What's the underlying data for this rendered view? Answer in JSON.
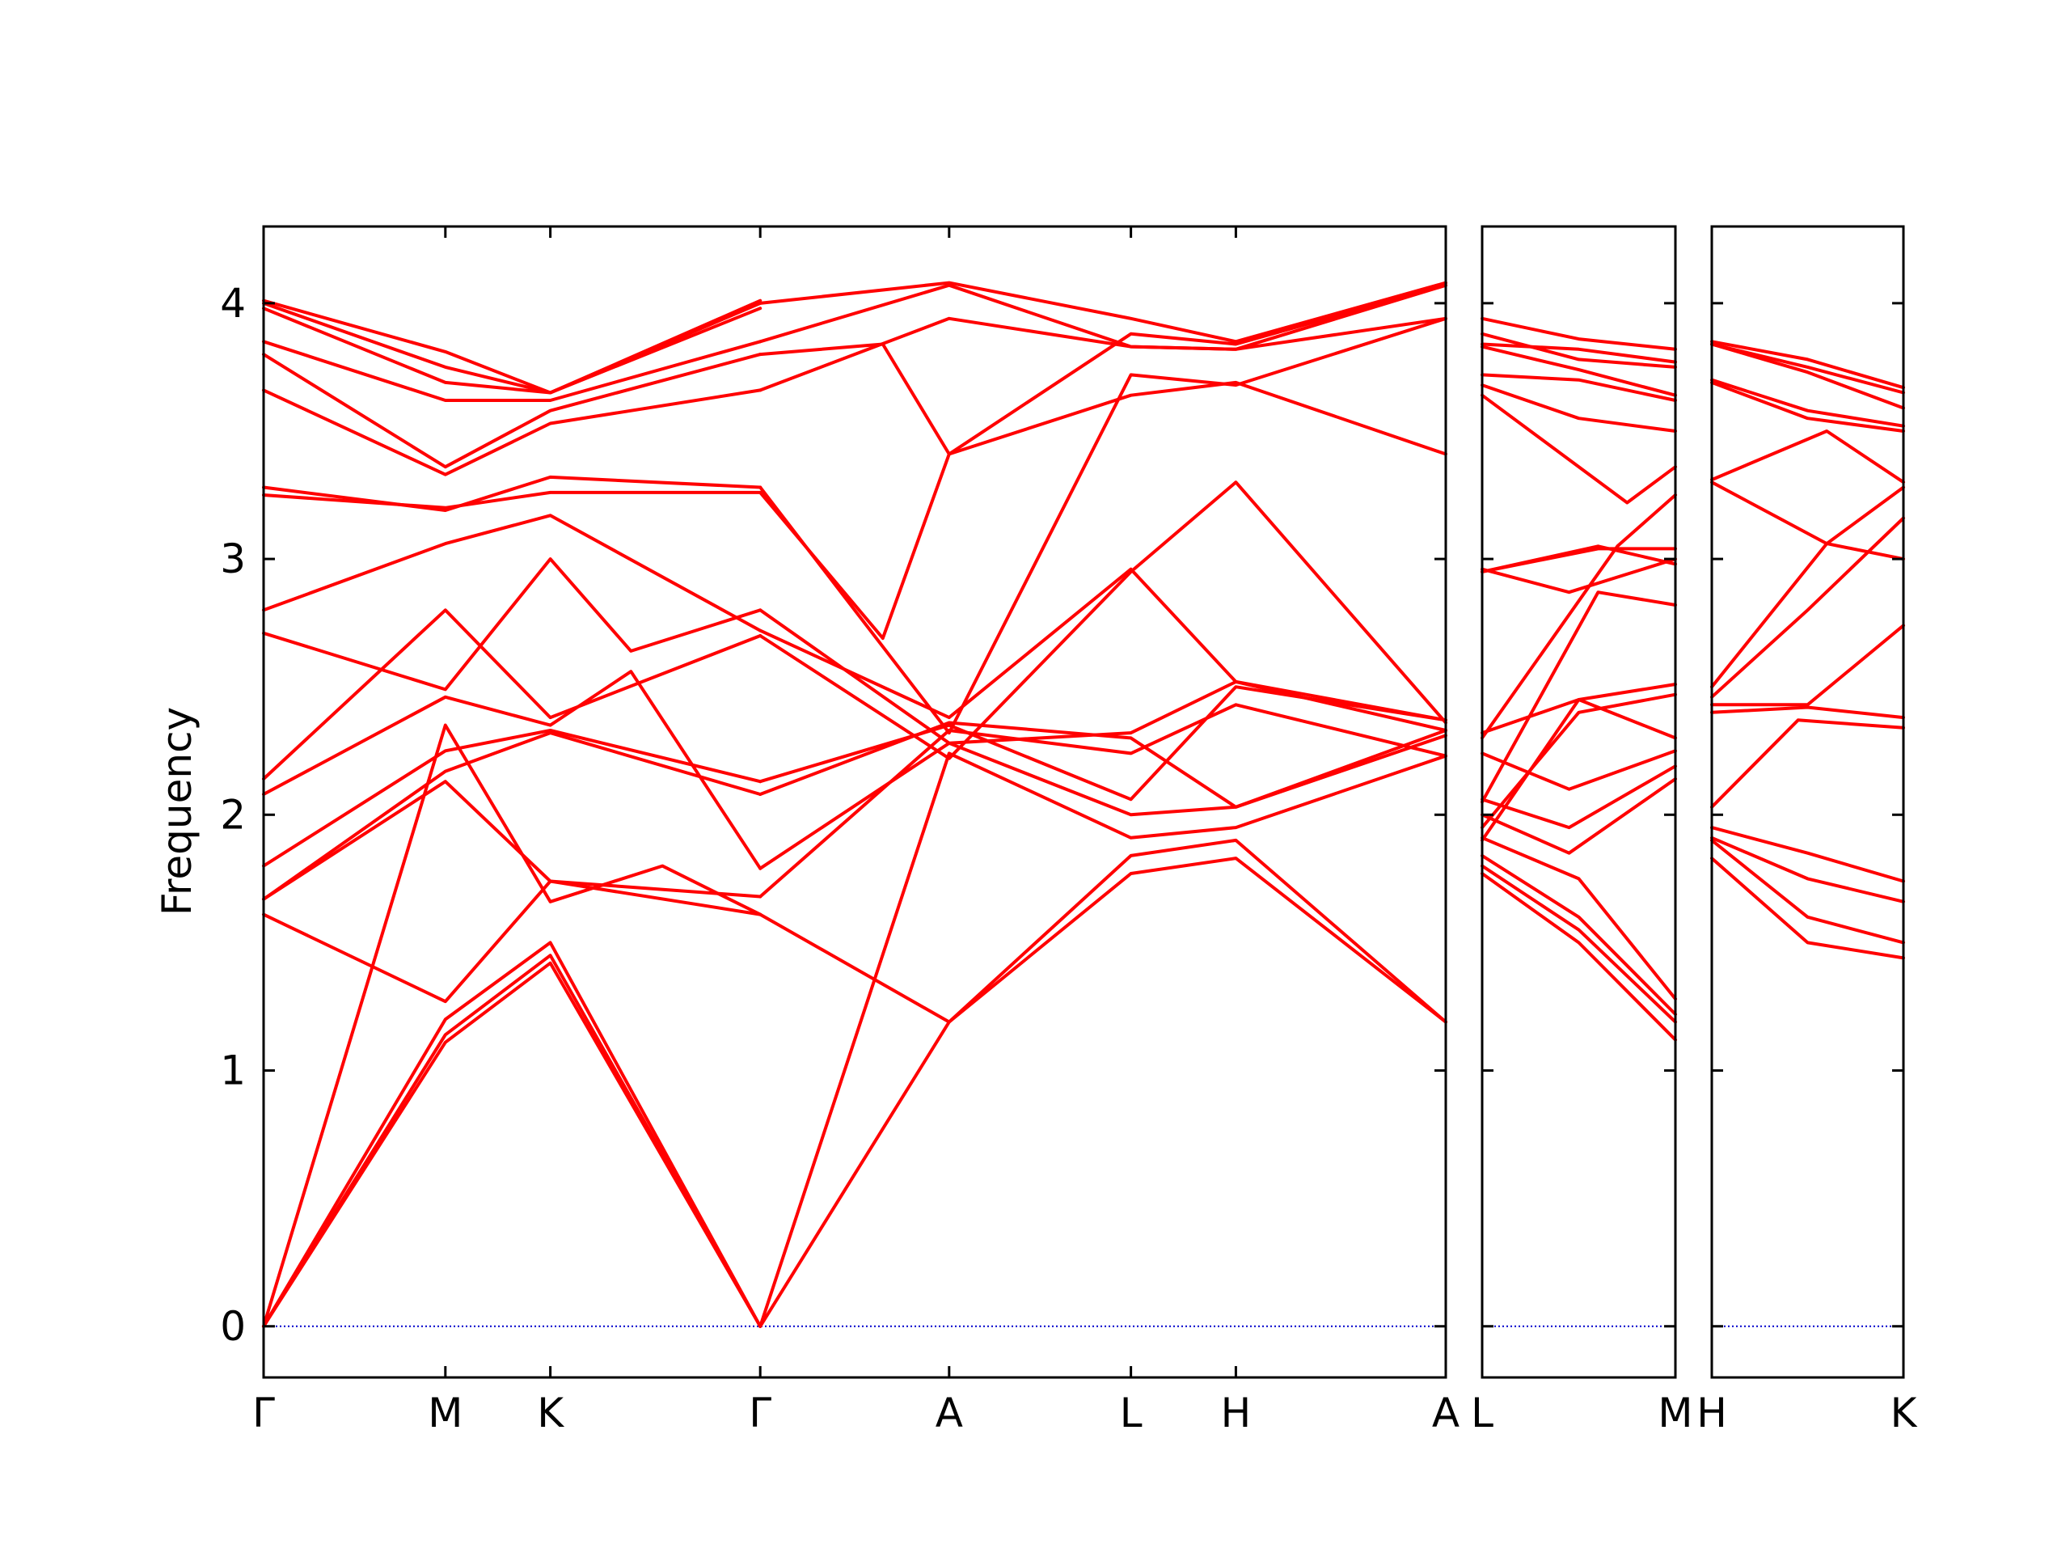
{
  "chart_data": {
    "type": "line",
    "ylabel": "Frequency",
    "ylim": [
      -0.2,
      4.3
    ],
    "yticks": [
      0,
      1,
      2,
      3,
      4
    ],
    "line_color": "#ff0000",
    "zero_line_color": "#0000cc",
    "panels": [
      {
        "labels": [
          "Γ",
          "M",
          "K",
          "Γ",
          "A",
          "L",
          "H",
          "A"
        ],
        "tick_positions": [
          0,
          0.866,
          1.366,
          2.366,
          3.266,
          4.132,
          4.632,
          5.632
        ],
        "xlim": [
          0,
          5.632
        ],
        "bands": [
          {
            "x": [
              0,
              0.866,
              1.366,
              2.366
            ],
            "y": [
              0,
              1.11,
              1.42,
              0
            ]
          },
          {
            "x": [
              0,
              0.866,
              1.366,
              2.366
            ],
            "y": [
              0,
              1.14,
              1.45,
              0
            ]
          },
          {
            "x": [
              0,
              0.866,
              1.366,
              2.366
            ],
            "y": [
              0,
              1.2,
              1.5,
              0
            ]
          },
          {
            "x": [
              0,
              0.866,
              1.366,
              1.9,
              2.366
            ],
            "y": [
              0,
              2.35,
              1.66,
              1.8,
              1.61
            ]
          },
          {
            "x": [
              0,
              0.866,
              1.366,
              2.366
            ],
            "y": [
              1.61,
              1.27,
              1.74,
              1.61
            ]
          },
          {
            "x": [
              0,
              0.866,
              1.366,
              2.366
            ],
            "y": [
              1.67,
              2.13,
              1.74,
              1.68
            ]
          },
          {
            "x": [
              0,
              0.866,
              1.366,
              2.366
            ],
            "y": [
              1.67,
              2.17,
              2.32,
              2.08
            ]
          },
          {
            "x": [
              0,
              0.866,
              1.366,
              2.366
            ],
            "y": [
              1.8,
              2.25,
              2.33,
              2.13
            ]
          },
          {
            "x": [
              0,
              0.866,
              1.366,
              1.75,
              2.366
            ],
            "y": [
              2.08,
              2.46,
              2.35,
              2.56,
              1.79
            ]
          },
          {
            "x": [
              0,
              0.866,
              1.366,
              2.366
            ],
            "y": [
              2.14,
              2.8,
              2.38,
              2.7
            ]
          },
          {
            "x": [
              0,
              0.866,
              1.366,
              1.75,
              2.366
            ],
            "y": [
              2.71,
              2.49,
              3.0,
              2.64,
              2.8
            ]
          },
          {
            "x": [
              0,
              0.866,
              1.366,
              2.366
            ],
            "y": [
              2.8,
              3.06,
              3.17,
              2.72
            ]
          },
          {
            "x": [
              0,
              0.866,
              1.366,
              2.366
            ],
            "y": [
              3.25,
              3.2,
              3.26,
              3.26
            ]
          },
          {
            "x": [
              0,
              0.866,
              1.366,
              2.366
            ],
            "y": [
              3.28,
              3.19,
              3.32,
              3.28
            ]
          },
          {
            "x": [
              0,
              0.866,
              1.366,
              2.366
            ],
            "y": [
              3.66,
              3.33,
              3.53,
              3.66
            ]
          },
          {
            "x": [
              0,
              0.866,
              1.366,
              2.366
            ],
            "y": [
              3.8,
              3.36,
              3.58,
              3.8
            ]
          },
          {
            "x": [
              0,
              0.866,
              1.366,
              2.366
            ],
            "y": [
              3.85,
              3.62,
              3.62,
              3.85
            ]
          },
          {
            "x": [
              0,
              0.866,
              1.366,
              2.366
            ],
            "y": [
              3.98,
              3.69,
              3.65,
              3.98
            ]
          },
          {
            "x": [
              0,
              0.866,
              1.366,
              2.366
            ],
            "y": [
              4.0,
              3.75,
              3.65,
              4.0
            ]
          },
          {
            "x": [
              0,
              0.866,
              1.366,
              2.366
            ],
            "y": [
              4.01,
              3.81,
              3.65,
              4.01
            ]
          },
          {
            "x": [
              2.366,
              3.266,
              4.132,
              4.632,
              5.632
            ],
            "y": [
              0,
              1.19,
              1.77,
              1.83,
              1.19
            ]
          },
          {
            "x": [
              2.366,
              3.266,
              4.132,
              4.632,
              5.632
            ],
            "y": [
              0,
              2.24,
              1.91,
              1.95,
              2.23
            ]
          },
          {
            "x": [
              2.366,
              3.266,
              4.132,
              4.632,
              5.632
            ],
            "y": [
              1.61,
              1.19,
              1.84,
              1.9,
              1.19
            ]
          },
          {
            "x": [
              2.366,
              3.266,
              4.132,
              4.632,
              5.632
            ],
            "y": [
              1.68,
              2.33,
              2.24,
              2.43,
              2.23
            ]
          },
          {
            "x": [
              2.366,
              3.266,
              4.132,
              4.632,
              5.632
            ],
            "y": [
              1.79,
              2.28,
              2.0,
              2.03,
              2.31
            ]
          },
          {
            "x": [
              2.366,
              3.266,
              4.132,
              4.632,
              5.632
            ],
            "y": [
              2.08,
              2.36,
              2.3,
              2.03,
              2.33
            ]
          },
          {
            "x": [
              2.366,
              3.266,
              4.132,
              4.632,
              5.632
            ],
            "y": [
              2.13,
              2.35,
              2.06,
              2.5,
              2.37
            ]
          },
          {
            "x": [
              2.366,
              3.266,
              4.132,
              4.632,
              5.632
            ],
            "y": [
              2.7,
              2.22,
              2.95,
              3.3,
              2.36
            ]
          },
          {
            "x": [
              2.366,
              3.266,
              4.132,
              4.632,
              5.632
            ],
            "y": [
              2.72,
              2.38,
              2.96,
              2.52,
              2.33
            ]
          },
          {
            "x": [
              2.366,
              3.266,
              4.132,
              4.632,
              5.632
            ],
            "y": [
              2.8,
              2.28,
              2.32,
              2.52,
              2.37
            ]
          },
          {
            "x": [
              2.366,
              2.95,
              3.266,
              4.132,
              4.632,
              5.632
            ],
            "y": [
              3.26,
              2.69,
              3.41,
              3.64,
              3.69,
              3.41
            ]
          },
          {
            "x": [
              2.366,
              3.266,
              4.132,
              4.632,
              5.632
            ],
            "y": [
              3.28,
              2.32,
              3.72,
              3.68,
              3.94
            ]
          },
          {
            "x": [
              2.366,
              3.266,
              4.132,
              4.632,
              5.632
            ],
            "y": [
              3.66,
              3.94,
              3.83,
              3.82,
              3.94
            ]
          },
          {
            "x": [
              2.366,
              2.95,
              3.266,
              4.132,
              4.632,
              5.632
            ],
            "y": [
              3.8,
              3.84,
              3.41,
              3.88,
              3.84,
              4.07
            ]
          },
          {
            "x": [
              2.366,
              3.266,
              4.132,
              4.632,
              5.632
            ],
            "y": [
              3.85,
              4.07,
              3.83,
              3.82,
              4.07
            ]
          },
          {
            "x": [
              2.366,
              3.266,
              4.132,
              4.632,
              5.632
            ],
            "y": [
              4.0,
              4.08,
              3.94,
              3.85,
              4.08
            ]
          }
        ]
      },
      {
        "labels": [
          "L",
          "M"
        ],
        "tick_positions": [
          0,
          1
        ],
        "xlim": [
          0,
          1
        ],
        "bands": [
          {
            "x": [
              0,
              0.5,
              1
            ],
            "y": [
              1.77,
              1.5,
              1.12
            ]
          },
          {
            "x": [
              0,
              0.5,
              1
            ],
            "y": [
              1.8,
              1.55,
              1.19
            ]
          },
          {
            "x": [
              0,
              0.5,
              1
            ],
            "y": [
              1.84,
              1.6,
              1.22
            ]
          },
          {
            "x": [
              0,
              0.5,
              1
            ],
            "y": [
              1.91,
              1.75,
              1.28
            ]
          },
          {
            "x": [
              0,
              0.45,
              1
            ],
            "y": [
              2.0,
              1.85,
              2.14
            ]
          },
          {
            "x": [
              0,
              0.45,
              1
            ],
            "y": [
              2.06,
              1.95,
              2.19
            ]
          },
          {
            "x": [
              0,
              0.45,
              1
            ],
            "y": [
              2.24,
              2.1,
              2.25
            ]
          },
          {
            "x": [
              0,
              0.5,
              1
            ],
            "y": [
              2.32,
              2.45,
              2.3
            ]
          },
          {
            "x": [
              0,
              0.5,
              1
            ],
            "y": [
              1.95,
              2.4,
              2.47
            ]
          },
          {
            "x": [
              0,
              0.5,
              1
            ],
            "y": [
              1.9,
              2.45,
              2.51
            ]
          },
          {
            "x": [
              0,
              0.6,
              1
            ],
            "y": [
              2.05,
              2.87,
              2.82
            ]
          },
          {
            "x": [
              0,
              0.6,
              1
            ],
            "y": [
              2.95,
              3.05,
              2.98
            ]
          },
          {
            "x": [
              0,
              0.45,
              1
            ],
            "y": [
              2.96,
              2.87,
              3.0
            ]
          },
          {
            "x": [
              0,
              0.6,
              1
            ],
            "y": [
              2.95,
              3.04,
              3.04
            ]
          },
          {
            "x": [
              0,
              0.7,
              1
            ],
            "y": [
              2.3,
              3.05,
              3.25
            ]
          },
          {
            "x": [
              0,
              0.75,
              1
            ],
            "y": [
              3.64,
              3.22,
              3.36
            ]
          },
          {
            "x": [
              0,
              0.5,
              1
            ],
            "y": [
              3.68,
              3.55,
              3.5
            ]
          },
          {
            "x": [
              0,
              0.5,
              1
            ],
            "y": [
              3.72,
              3.7,
              3.62
            ]
          },
          {
            "x": [
              0,
              0.5,
              1
            ],
            "y": [
              3.83,
              3.74,
              3.64
            ]
          },
          {
            "x": [
              0,
              0.5,
              1
            ],
            "y": [
              3.88,
              3.78,
              3.75
            ]
          },
          {
            "x": [
              0,
              0.5,
              1
            ],
            "y": [
              3.84,
              3.82,
              3.77
            ]
          },
          {
            "x": [
              0,
              0.5,
              1
            ],
            "y": [
              3.94,
              3.86,
              3.82
            ]
          }
        ]
      },
      {
        "labels": [
          "H",
          "K"
        ],
        "tick_positions": [
          0,
          1
        ],
        "xlim": [
          0,
          1
        ],
        "bands": [
          {
            "x": [
              0,
              0.5,
              1
            ],
            "y": [
              1.83,
              1.5,
              1.44
            ]
          },
          {
            "x": [
              0,
              0.5,
              1
            ],
            "y": [
              1.9,
              1.6,
              1.5
            ]
          },
          {
            "x": [
              0,
              0.5,
              1
            ],
            "y": [
              1.91,
              1.75,
              1.66
            ]
          },
          {
            "x": [
              0,
              0.5,
              1
            ],
            "y": [
              1.95,
              1.85,
              1.74
            ]
          },
          {
            "x": [
              0,
              0.45,
              1
            ],
            "y": [
              2.03,
              2.37,
              2.34
            ]
          },
          {
            "x": [
              0,
              0.5,
              1
            ],
            "y": [
              2.4,
              2.42,
              2.38
            ]
          },
          {
            "x": [
              0,
              0.5,
              1
            ],
            "y": [
              2.43,
              2.43,
              2.74
            ]
          },
          {
            "x": [
              0,
              0.5,
              1
            ],
            "y": [
              2.46,
              2.8,
              3.16
            ]
          },
          {
            "x": [
              0,
              0.6,
              1
            ],
            "y": [
              2.5,
              3.06,
              3.28
            ]
          },
          {
            "x": [
              0,
              0.6,
              1
            ],
            "y": [
              3.3,
              3.06,
              3.0
            ]
          },
          {
            "x": [
              0,
              0.6,
              1
            ],
            "y": [
              3.31,
              3.5,
              3.3
            ]
          },
          {
            "x": [
              0,
              0.5,
              1
            ],
            "y": [
              3.69,
              3.55,
              3.5
            ]
          },
          {
            "x": [
              0,
              0.5,
              1
            ],
            "y": [
              3.7,
              3.58,
              3.52
            ]
          },
          {
            "x": [
              0,
              0.5,
              1
            ],
            "y": [
              3.84,
              3.73,
              3.59
            ]
          },
          {
            "x": [
              0,
              0.5,
              1
            ],
            "y": [
              3.84,
              3.75,
              3.65
            ]
          },
          {
            "x": [
              0,
              0.5,
              1
            ],
            "y": [
              3.85,
              3.78,
              3.67
            ]
          }
        ]
      }
    ]
  }
}
